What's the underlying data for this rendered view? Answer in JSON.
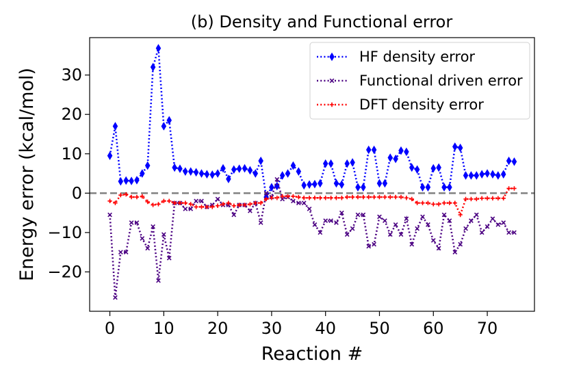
{
  "chart_data": {
    "type": "line",
    "title": "(b) Density and Functional error",
    "xlabel": "Reaction #",
    "ylabel": "Energy error (kcal/mol)",
    "xlim": [
      -3.75,
      78.75
    ],
    "ylim": [
      -30,
      39.5
    ],
    "xticks": [
      0,
      10,
      20,
      30,
      40,
      50,
      60,
      70
    ],
    "yticks": [
      -20,
      -10,
      0,
      10,
      20,
      30
    ],
    "xtick_labels": [
      "0",
      "10",
      "20",
      "30",
      "40",
      "50",
      "60",
      "70"
    ],
    "ytick_labels": [
      "−20",
      "−10",
      "0",
      "10",
      "20",
      "30"
    ],
    "grid": false,
    "legend_position": "top-right",
    "reference_line": {
      "y": 0,
      "style": "dashed",
      "color": "#808080"
    },
    "x": [
      0,
      1,
      2,
      3,
      4,
      5,
      6,
      7,
      8,
      9,
      10,
      11,
      12,
      13,
      14,
      15,
      16,
      17,
      18,
      19,
      20,
      21,
      22,
      23,
      24,
      25,
      26,
      27,
      28,
      29,
      30,
      31,
      32,
      33,
      34,
      35,
      36,
      37,
      38,
      39,
      40,
      41,
      42,
      43,
      44,
      45,
      46,
      47,
      48,
      49,
      50,
      51,
      52,
      53,
      54,
      55,
      56,
      57,
      58,
      59,
      60,
      61,
      62,
      63,
      64,
      65,
      66,
      67,
      68,
      69,
      70,
      71,
      72,
      73,
      74,
      75
    ],
    "series": [
      {
        "name": "HF density error",
        "color": "#0000ff",
        "marker": "diamond",
        "values": [
          9.5,
          17,
          3,
          3.2,
          3.1,
          3.3,
          5,
          7,
          32,
          36.8,
          17,
          18.5,
          6.5,
          6.2,
          5.5,
          5.5,
          5.3,
          5,
          4.8,
          4.7,
          5,
          6.3,
          3.6,
          6,
          6.2,
          6.3,
          5.8,
          5,
          8.2,
          -1,
          1.5,
          1.8,
          4.5,
          5,
          7,
          5.5,
          2,
          2.2,
          2.3,
          2.5,
          7.5,
          7.5,
          2.5,
          2.2,
          7.5,
          7.8,
          1.5,
          1.5,
          11,
          11,
          2.5,
          2.5,
          9,
          8.7,
          10.8,
          10.5,
          6.5,
          6,
          1.5,
          1.5,
          6.3,
          6.5,
          1.5,
          1.5,
          11.8,
          11.5,
          4.5,
          4.5,
          4.5,
          4.8,
          5,
          4.8,
          4.5,
          4.8,
          8.2,
          8
        ]
      },
      {
        "name": "Functional driven error",
        "color": "#4b0082",
        "marker": "x",
        "values": [
          -5.5,
          -26.5,
          -15,
          -15,
          -7.5,
          -7.5,
          -11.5,
          -14,
          -8.5,
          -22.2,
          -10.5,
          -16.5,
          -2.5,
          -2.5,
          -4,
          -4,
          -2,
          -2,
          -3.5,
          -3,
          -1.5,
          -3,
          -3,
          -5.5,
          -3,
          -3,
          -4.5,
          -2.5,
          -7.5,
          0,
          -1,
          3.5,
          -1.5,
          -1,
          -2,
          -2.5,
          -2.5,
          -4,
          -8,
          -10,
          -7,
          -7,
          -7.5,
          -5,
          -10.5,
          -9,
          -5.5,
          -5.5,
          -13.5,
          -13,
          -6,
          -7,
          -10.5,
          -8,
          -10.5,
          -6.5,
          -13,
          -9,
          -6,
          -8,
          -12,
          -14,
          -5.5,
          -7,
          -15,
          -13,
          -9,
          -7,
          -5.5,
          -10,
          -8.5,
          -6.5,
          -8,
          -7.5,
          -10,
          -10
        ]
      },
      {
        "name": "DFT density error",
        "color": "#ff0000",
        "marker": "plus",
        "values": [
          -2,
          -2.5,
          -0.5,
          -0.3,
          -1,
          -1,
          -0.8,
          -2.2,
          -3,
          -2.8,
          -2,
          -2,
          -2.5,
          -2.5,
          -2.5,
          -2.8,
          -3.5,
          -3.5,
          -3.5,
          -3.5,
          -3.2,
          -2.8,
          -2.5,
          -3.2,
          -3,
          -3,
          -2.8,
          -2.5,
          -2.5,
          -1.5,
          -1.2,
          -1.2,
          -0.8,
          -0.8,
          -0.8,
          -1,
          -1.2,
          -1.2,
          -1.2,
          -1.2,
          -1.2,
          -1.2,
          -1.2,
          -1.2,
          -1,
          -1,
          -1,
          -1,
          -1,
          -1,
          -1,
          -1,
          -1,
          -1,
          -1,
          -1.2,
          -1.5,
          -2.5,
          -2.5,
          -2.5,
          -2.8,
          -2.8,
          -2.5,
          -2.5,
          -2.5,
          -5.5,
          -1.5,
          -1.5,
          -1.5,
          -1.3,
          -1.3,
          -1.3,
          -1.3,
          -1.3,
          1.2,
          1.2
        ]
      }
    ]
  }
}
